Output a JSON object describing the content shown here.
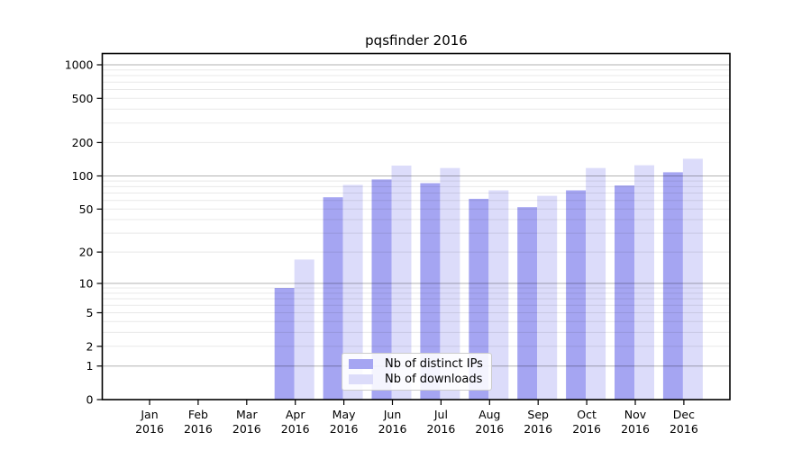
{
  "chart_data": {
    "type": "bar",
    "title": "pqsfinder 2016",
    "categories": [
      "Jan",
      "Feb",
      "Mar",
      "Apr",
      "May",
      "Jun",
      "Jul",
      "Aug",
      "Sep",
      "Oct",
      "Nov",
      "Dec"
    ],
    "x_tick_year": "2016",
    "series": [
      {
        "name": "Nb of distinct IPs",
        "color": "#a5a5f2",
        "values": [
          0,
          0,
          0,
          9,
          64,
          93,
          86,
          62,
          52,
          74,
          82,
          108
        ]
      },
      {
        "name": "Nb of downloads",
        "color": "#dcdcfa",
        "values": [
          0,
          0,
          0,
          17,
          83,
          124,
          118,
          74,
          66,
          118,
          125,
          143
        ]
      }
    ],
    "y_scale": "log1p",
    "y_ticks": [
      0,
      1,
      2,
      5,
      10,
      20,
      50,
      100,
      200,
      500,
      1000
    ],
    "y_max": 1250,
    "xlabel": "",
    "ylabel": "",
    "grid": {
      "major": [
        1,
        10,
        100,
        1000
      ],
      "minor_decades": [
        1,
        10,
        100
      ],
      "position": "over-bars"
    },
    "legend_position": "bottom-center-inside",
    "colors": {
      "major_grid": "rgba(0,0,0,0.30)",
      "minor_grid": "rgba(0,0,0,0.09)",
      "spine": "#000000",
      "text": "#000000"
    }
  }
}
